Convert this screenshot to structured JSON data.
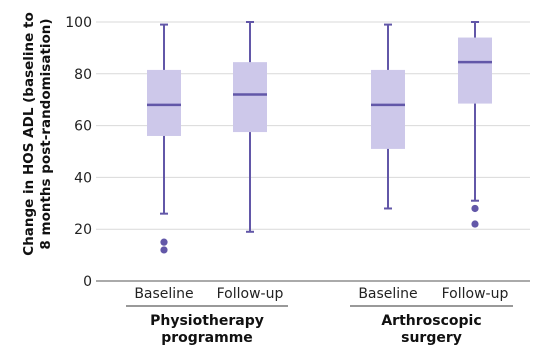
{
  "chart_data": {
    "type": "box",
    "ylabel_lines": [
      "Change in HOS ADL (baseline to",
      "8 months post-randomisation)"
    ],
    "ylim": [
      0,
      100
    ],
    "yticks": [
      0,
      20,
      40,
      60,
      80,
      100
    ],
    "grid": true,
    "groups": [
      {
        "label_lines": [
          "Physiotherapy",
          "programme"
        ],
        "boxes": [
          {
            "category": "Baseline",
            "whisker_low": 26,
            "q1": 56,
            "median": 68,
            "q3": 81.5,
            "whisker_high": 99,
            "outliers": [
              15,
              12
            ]
          },
          {
            "category": "Follow-up",
            "whisker_low": 19,
            "q1": 57.5,
            "median": 72,
            "q3": 84.5,
            "whisker_high": 100,
            "outliers": []
          }
        ]
      },
      {
        "label_lines": [
          "Arthroscopic",
          "surgery"
        ],
        "boxes": [
          {
            "category": "Baseline",
            "whisker_low": 28,
            "q1": 51,
            "median": 68,
            "q3": 81.5,
            "whisker_high": 99,
            "outliers": []
          },
          {
            "category": "Follow-up",
            "whisker_low": 31,
            "q1": 68.5,
            "median": 84.5,
            "q3": 94,
            "whisker_high": 100,
            "outliers": [
              28,
              22
            ]
          }
        ]
      }
    ],
    "colors": {
      "box_fill": "#cdc8ea",
      "line": "#6257a8",
      "grid": "#d9d9d9",
      "axis": "#555555",
      "outlier": "#6257a8"
    }
  }
}
